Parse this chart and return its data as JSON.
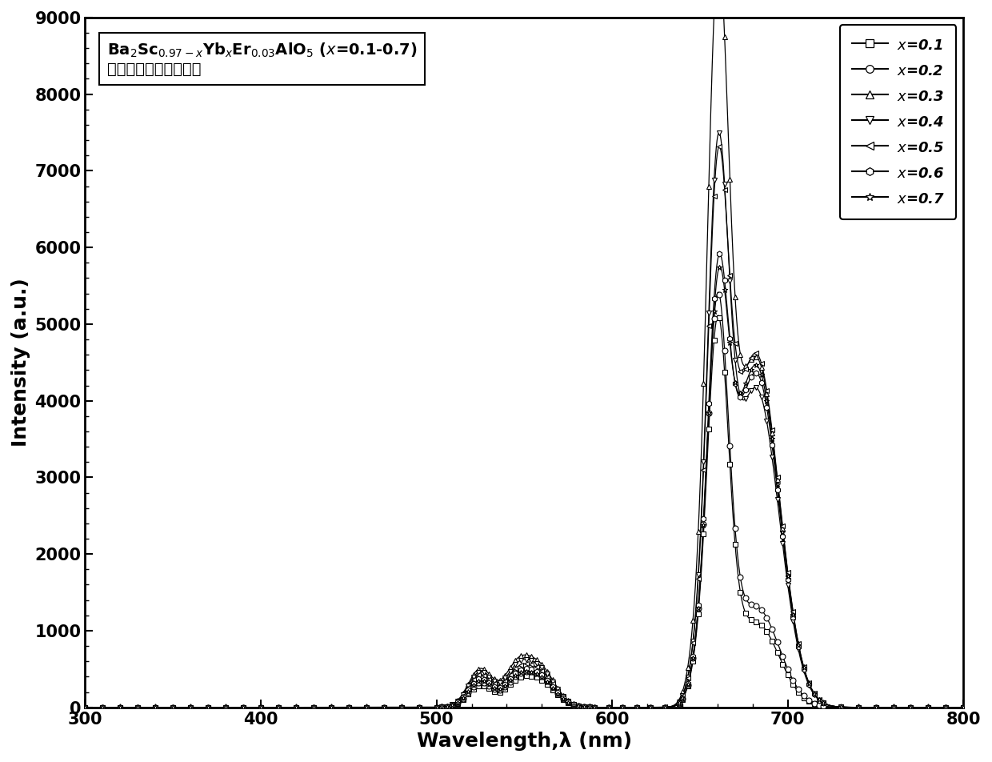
{
  "xlabel": "Wavelength,λ (nm)",
  "ylabel": "Intensity (a.u.)",
  "xlim": [
    300,
    800
  ],
  "ylim": [
    0,
    9000
  ],
  "yticks": [
    0,
    1000,
    2000,
    3000,
    4000,
    5000,
    6000,
    7000,
    8000,
    9000
  ],
  "xticks": [
    300,
    400,
    500,
    600,
    700,
    800
  ],
  "series": [
    {
      "label": "$x$=0.1",
      "marker": "s",
      "g1h": 280,
      "g2h": 230,
      "g3h": 340,
      "r1h": 4800,
      "r2h": 1100,
      "r3h": 700
    },
    {
      "label": "$x$=0.2",
      "marker": "o",
      "g1h": 320,
      "g2h": 260,
      "g3h": 390,
      "r1h": 5050,
      "r2h": 1300,
      "r3h": 750
    },
    {
      "label": "$x$=0.3",
      "marker": "^",
      "g1h": 500,
      "g2h": 420,
      "g3h": 530,
      "r1h": 8600,
      "r2h": 4550,
      "r3h": 800
    },
    {
      "label": "$x$=0.4",
      "marker": "v",
      "g1h": 460,
      "g2h": 380,
      "g3h": 490,
      "r1h": 6400,
      "r2h": 4150,
      "r3h": 760
    },
    {
      "label": "$x$=0.5",
      "marker": "<",
      "g1h": 420,
      "g2h": 340,
      "g3h": 450,
      "r1h": 6100,
      "r2h": 4600,
      "r3h": 730
    },
    {
      "label": "$x$=0.6",
      "marker": "h",
      "g1h": 370,
      "g2h": 300,
      "g3h": 400,
      "r1h": 4750,
      "r2h": 4350,
      "r3h": 680
    },
    {
      "label": "$x$=0.7",
      "marker": "*",
      "g1h": 340,
      "g2h": 280,
      "g3h": 370,
      "r1h": 4550,
      "r2h": 4450,
      "r3h": 650
    }
  ],
  "line_color": "black",
  "marker_size": 5,
  "line_width": 0.9,
  "background_color": "white",
  "legend_markers": [
    "s",
    "o",
    "^",
    "v",
    "<",
    "h",
    "*"
  ],
  "legend_labels": [
    "$x$=0.1",
    "$x$=0.2",
    "$x$=0.3",
    "$x$=0.4",
    "$x$=0.5",
    "$x$=0.6",
    "$x$=0.7"
  ],
  "annotation_line1": "Ba$_2$Sc$_{0.97-x}$Yb$_x$Er$_{0.03}$AlO$_5$ ($x$=0.1-0.7)",
  "annotation_line2": "系列的上转换发光光谱"
}
